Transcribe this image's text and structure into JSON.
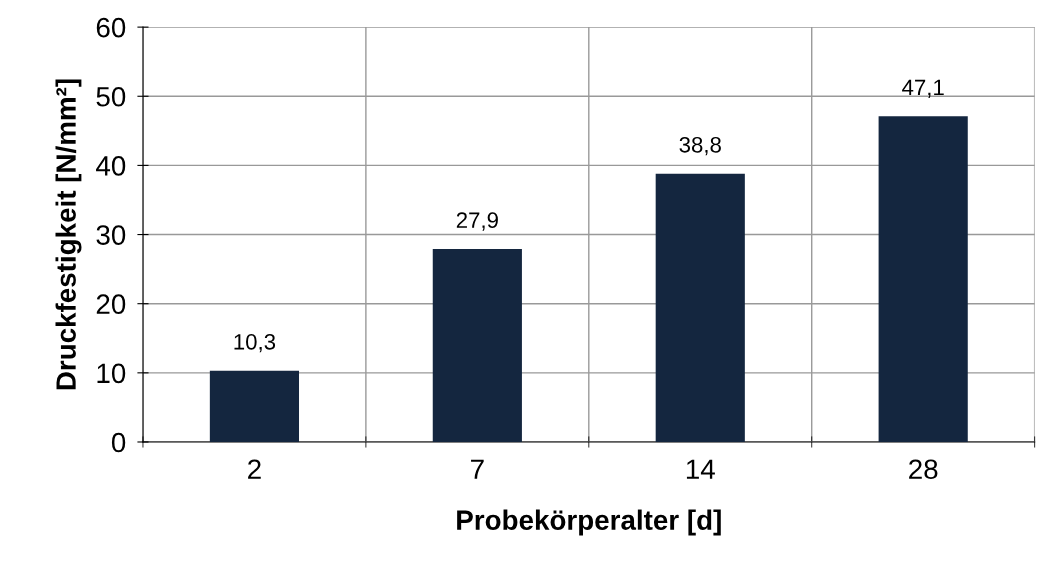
{
  "chart_data": {
    "type": "bar",
    "xlabel": "Probekörperalter [d]",
    "ylabel": "Druckfestigkeit [N/mm²]",
    "categories": [
      "2",
      "7",
      "14",
      "28"
    ],
    "values": [
      10.3,
      27.9,
      38.8,
      47.1
    ],
    "value_labels": [
      "10,3",
      "27,9",
      "38,8",
      "47,1"
    ],
    "color": "#14263f",
    "ylim": [
      0,
      60
    ],
    "yticks": [
      0,
      10,
      20,
      30,
      40,
      50,
      60
    ],
    "grid": true,
    "legend": false
  }
}
